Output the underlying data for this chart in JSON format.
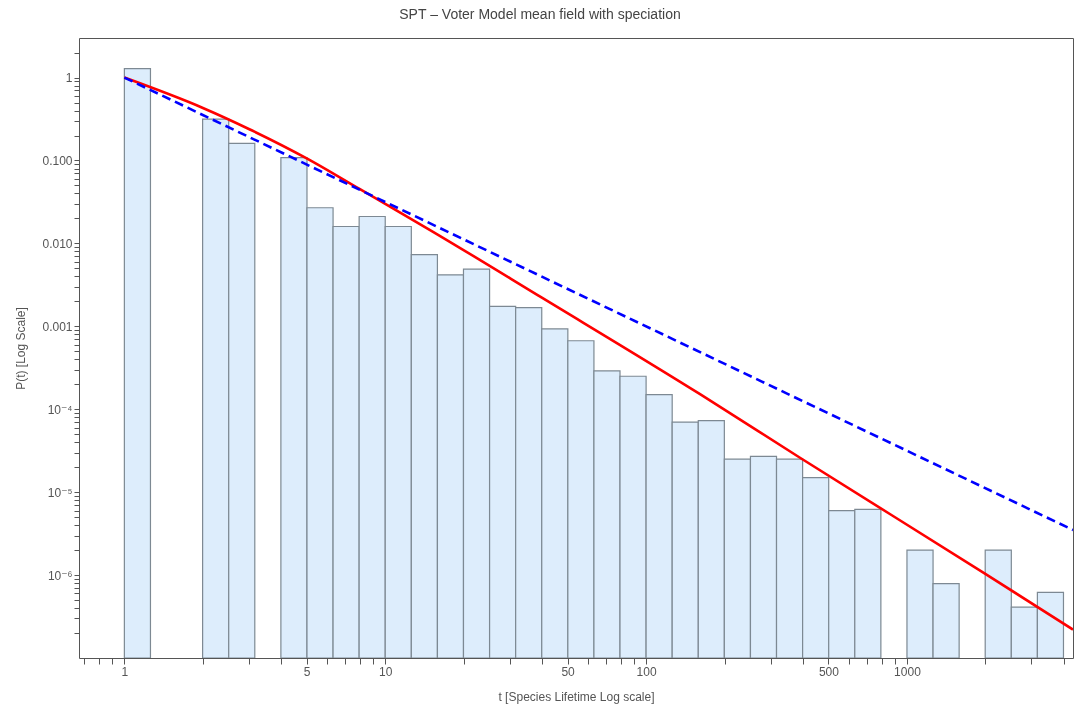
{
  "chart_data": {
    "type": "histogram",
    "title": "SPT – Voter Model mean field with speciation",
    "xlabel": "t [Species Lifetime Log scale]",
    "ylabel": "P(t) [Log Scale]",
    "log": "xy",
    "xlim": [
      0.67,
      4330
    ],
    "ylim": [
      1e-07,
      3
    ],
    "xticks": [
      {
        "value": 0.7,
        "label": null
      },
      {
        "value": 0.8,
        "label": null
      },
      {
        "value": 0.9,
        "label": null
      },
      1,
      {
        "value": 2,
        "label": null
      },
      {
        "value": 3,
        "label": null
      },
      {
        "value": 4,
        "label": null
      },
      5,
      {
        "value": 6,
        "label": null
      },
      {
        "value": 7,
        "label": null
      },
      {
        "value": 8,
        "label": null
      },
      {
        "value": 9,
        "label": null
      },
      10,
      {
        "value": 20,
        "label": null
      },
      {
        "value": 30,
        "label": null
      },
      {
        "value": 40,
        "label": null
      },
      50,
      {
        "value": 60,
        "label": null
      },
      {
        "value": 70,
        "label": null
      },
      {
        "value": 80,
        "label": null
      },
      {
        "value": 90,
        "label": null
      },
      100,
      {
        "value": 200,
        "label": null
      },
      {
        "value": 300,
        "label": null
      },
      {
        "value": 400,
        "label": null
      },
      500,
      {
        "value": 600,
        "label": null
      },
      {
        "value": 700,
        "label": null
      },
      {
        "value": 800,
        "label": null
      },
      {
        "value": 900,
        "label": null
      },
      1000,
      {
        "value": 2000,
        "label": null
      },
      {
        "value": 3000,
        "label": null
      },
      {
        "value": 4000,
        "label": null
      }
    ],
    "yticks": [
      {
        "value": 2e-07,
        "label": null
      },
      {
        "value": 3e-07,
        "label": null
      },
      {
        "value": 4e-07,
        "label": null
      },
      {
        "value": 5e-07,
        "label": null
      },
      {
        "value": 6e-07,
        "label": null
      },
      {
        "value": 7e-07,
        "label": null
      },
      {
        "value": 8e-07,
        "label": null
      },
      {
        "value": 9e-07,
        "label": null
      },
      {
        "value": 1e-06,
        "label": "10⁻⁶"
      },
      {
        "value": 2e-06,
        "label": null
      },
      {
        "value": 3e-06,
        "label": null
      },
      {
        "value": 4e-06,
        "label": null
      },
      {
        "value": 5e-06,
        "label": null
      },
      {
        "value": 6e-06,
        "label": null
      },
      {
        "value": 7e-06,
        "label": null
      },
      {
        "value": 8e-06,
        "label": null
      },
      {
        "value": 9e-06,
        "label": null
      },
      {
        "value": 1e-05,
        "label": "10⁻⁵"
      },
      {
        "value": 2e-05,
        "label": null
      },
      {
        "value": 3e-05,
        "label": null
      },
      {
        "value": 4e-05,
        "label": null
      },
      {
        "value": 5e-05,
        "label": null
      },
      {
        "value": 6e-05,
        "label": null
      },
      {
        "value": 7e-05,
        "label": null
      },
      {
        "value": 8e-05,
        "label": null
      },
      {
        "value": 9e-05,
        "label": null
      },
      {
        "value": 0.0001,
        "label": "10⁻⁴"
      },
      {
        "value": 0.0002,
        "label": null
      },
      {
        "value": 0.0003,
        "label": null
      },
      {
        "value": 0.0004,
        "label": null
      },
      {
        "value": 0.0005,
        "label": null
      },
      {
        "value": 0.0006,
        "label": null
      },
      {
        "value": 0.0007,
        "label": null
      },
      {
        "value": 0.0008,
        "label": null
      },
      {
        "value": 0.0009,
        "label": null
      },
      {
        "value": 0.001,
        "label": "0.001"
      },
      {
        "value": 0.002,
        "label": null
      },
      {
        "value": 0.003,
        "label": null
      },
      {
        "value": 0.004,
        "label": null
      },
      {
        "value": 0.005,
        "label": null
      },
      {
        "value": 0.006,
        "label": null
      },
      {
        "value": 0.007,
        "label": null
      },
      {
        "value": 0.008,
        "label": null
      },
      {
        "value": 0.009,
        "label": null
      },
      {
        "value": 0.01,
        "label": "0.010"
      },
      {
        "value": 0.02,
        "label": null
      },
      {
        "value": 0.03,
        "label": null
      },
      {
        "value": 0.04,
        "label": null
      },
      {
        "value": 0.05,
        "label": null
      },
      {
        "value": 0.06,
        "label": null
      },
      {
        "value": 0.07,
        "label": null
      },
      {
        "value": 0.08,
        "label": null
      },
      {
        "value": 0.09,
        "label": null
      },
      {
        "value": 0.1,
        "label": "0.100"
      },
      {
        "value": 0.2,
        "label": null
      },
      {
        "value": 0.3,
        "label": null
      },
      {
        "value": 0.4,
        "label": null
      },
      {
        "value": 0.5,
        "label": null
      },
      {
        "value": 0.6,
        "label": null
      },
      {
        "value": 0.7,
        "label": null
      },
      {
        "value": 0.8,
        "label": null
      },
      {
        "value": 0.9,
        "label": null
      },
      1,
      {
        "value": 2,
        "label": null
      }
    ],
    "bins": [
      1,
      1.259,
      1.585,
      1.995,
      2.512,
      3.162,
      3.981,
      5.012,
      6.31,
      7.943,
      10,
      12.59,
      15.85,
      19.95,
      25.12,
      31.62,
      39.81,
      50.12,
      63.1,
      79.43,
      100,
      125.9,
      158.5,
      199.5,
      251.2,
      316.2,
      398.1,
      501.2,
      631,
      794.3,
      1000,
      1259,
      1585,
      1995,
      2512,
      3162,
      3981
    ],
    "series": [
      {
        "color": "#ddedfc",
        "values": [
          1.28,
          null,
          null,
          0.315,
          0.161,
          null,
          0.108,
          0.0269,
          0.016,
          0.0211,
          0.016,
          0.00733,
          0.00418,
          0.00489,
          0.00174,
          0.00168,
          0.00093,
          0.00067,
          0.00029,
          0.00025,
          0.00015,
          7e-05,
          7.3e-05,
          2.5e-05,
          2.7e-05,
          2.5e-05,
          1.5e-05,
          6e-06,
          6.2e-06,
          null,
          2e-06,
          7.9e-07,
          null,
          2e-06,
          4.1e-07,
          6.2e-07
        ]
      },
      {
        "type": "line",
        "color": "#ff0000",
        "line_style": "solid",
        "x": [
          1,
          2,
          3,
          5,
          8,
          14.8,
          40,
          161,
          389,
          1983,
          4330
        ],
        "values": [
          1,
          0.43,
          0.24,
          0.106,
          0.045,
          0.0146,
          0.0022,
          0.000152,
          2.6e-05,
          1.05e-06,
          2.2e-07
        ]
      },
      {
        "type": "line",
        "color": "#0000ff",
        "line_style": "dashed",
        "x": [
          1,
          4330
        ],
        "values": [
          1,
          3.5e-06
        ]
      }
    ]
  }
}
